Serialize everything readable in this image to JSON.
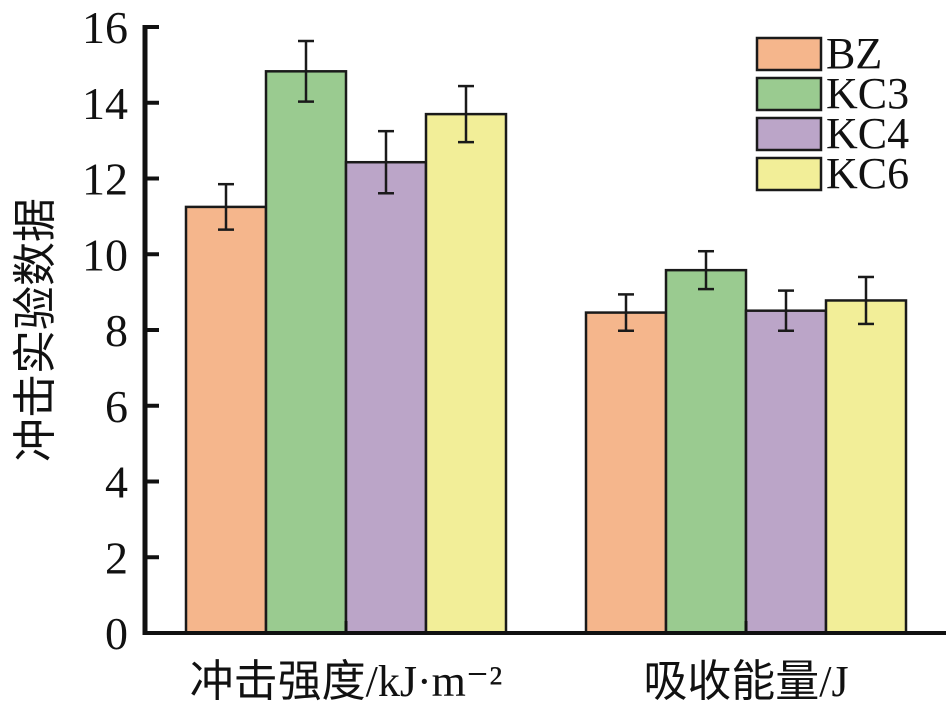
{
  "chart_data": {
    "type": "bar",
    "title": "",
    "xlabel": "",
    "ylabel": "冲击实验数据",
    "ylim": [
      0,
      16
    ],
    "yticks": [
      0,
      2,
      4,
      6,
      8,
      10,
      12,
      14,
      16
    ],
    "categories": [
      "冲击强度/kJ·m⁻²",
      "吸收能量/J"
    ],
    "legend_position": "top-right",
    "series": [
      {
        "name": "BZ",
        "color": "#f5b68c",
        "values": [
          11.25,
          8.46
        ],
        "errors": [
          0.6,
          0.48
        ]
      },
      {
        "name": "KC3",
        "color": "#9acb90",
        "values": [
          14.83,
          9.58
        ],
        "errors": [
          0.8,
          0.5
        ]
      },
      {
        "name": "KC4",
        "color": "#bba5c8",
        "values": [
          12.43,
          8.51
        ],
        "errors": [
          0.82,
          0.53
        ]
      },
      {
        "name": "KC6",
        "color": "#f2ee98",
        "values": [
          13.7,
          8.78
        ],
        "errors": [
          0.74,
          0.62
        ]
      }
    ]
  }
}
